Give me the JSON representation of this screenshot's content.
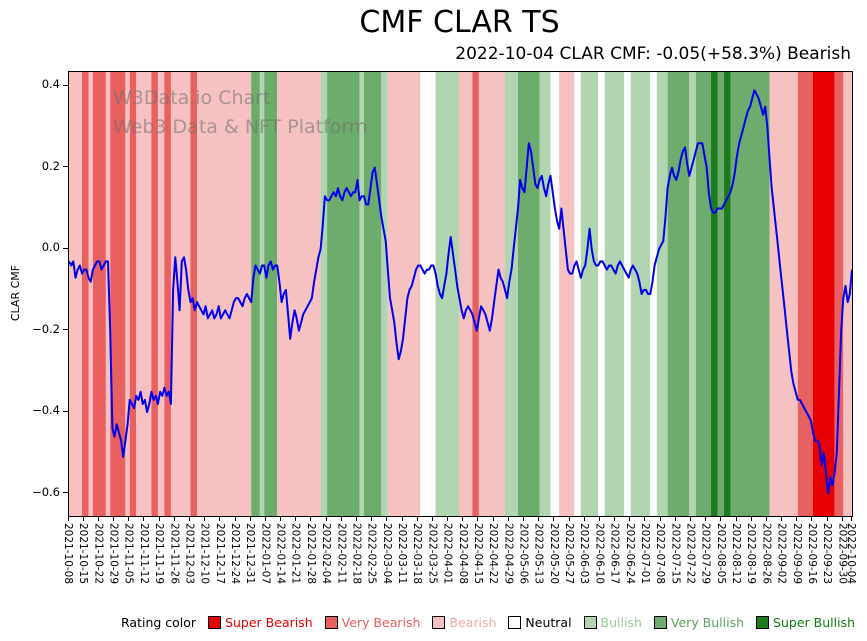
{
  "header": {
    "title": "CMF CLAR TS",
    "subtitle": "2022-10-04 CLAR CMF: -0.05(+58.3%) Bearish"
  },
  "watermark": {
    "line1": "W3Data.io Chart",
    "line2": "Web3 Data & NFT Platform"
  },
  "legend": {
    "label": "Rating color",
    "items": [
      {
        "label": "Super Bearish",
        "rating": "super_bearish",
        "text_color": "#e60000"
      },
      {
        "label": "Very Bearish",
        "rating": "very_bearish",
        "text_color": "#e25d5d"
      },
      {
        "label": "Bearish",
        "rating": "bearish",
        "text_color": "#efa9a9"
      },
      {
        "label": "Neutral",
        "rating": "neutral",
        "text_color": "#000000"
      },
      {
        "label": "Bullish",
        "rating": "bullish",
        "text_color": "#9cc99c"
      },
      {
        "label": "Very Bullish",
        "rating": "very_bullish",
        "text_color": "#5f9f5f"
      },
      {
        "label": "Super Bullish",
        "rating": "super_bullish",
        "text_color": "#147a14"
      }
    ]
  },
  "chart_data": {
    "type": "line",
    "title": "CMF CLAR TS",
    "xlabel": "",
    "ylabel": "CLAR CMF",
    "ylim": [
      -0.655,
      0.435
    ],
    "xlim_days": [
      0,
      361
    ],
    "grid": false,
    "line_color": "#0000ee",
    "y_ticks": [
      0.4,
      0.2,
      0.0,
      -0.2,
      -0.4,
      -0.6
    ],
    "y_tick_labels": [
      "0.4",
      "0.2",
      "0.0",
      "−0.2",
      "−0.4",
      "−0.6"
    ],
    "x_tick_days": [
      0,
      7,
      14,
      21,
      28,
      35,
      42,
      49,
      56,
      63,
      70,
      77,
      84,
      91,
      98,
      105,
      112,
      119,
      126,
      133,
      140,
      147,
      154,
      161,
      168,
      175,
      182,
      189,
      196,
      203,
      210,
      217,
      224,
      231,
      238,
      245,
      252,
      259,
      266,
      273,
      280,
      287,
      294,
      301,
      308,
      315,
      322,
      329,
      336,
      343,
      350,
      357,
      361
    ],
    "x_tick_labels": [
      "2021-10-08",
      "2021-10-15",
      "2021-10-22",
      "2021-10-29",
      "2021-11-05",
      "2021-11-12",
      "2021-11-19",
      "2021-11-26",
      "2021-12-03",
      "2021-12-10",
      "2021-12-17",
      "2021-12-24",
      "2021-12-31",
      "2022-01-07",
      "2022-01-14",
      "2022-01-21",
      "2022-01-28",
      "2022-02-04",
      "2022-02-11",
      "2022-02-18",
      "2022-02-25",
      "2022-03-04",
      "2022-03-11",
      "2022-03-18",
      "2022-03-25",
      "2022-04-01",
      "2022-04-08",
      "2022-04-15",
      "2022-04-22",
      "2022-04-29",
      "2022-05-06",
      "2022-05-13",
      "2022-05-20",
      "2022-05-27",
      "2022-06-03",
      "2022-06-10",
      "2022-06-17",
      "2022-06-24",
      "2022-07-01",
      "2022-07-08",
      "2022-07-15",
      "2022-07-22",
      "2022-07-29",
      "2022-08-05",
      "2022-08-12",
      "2022-08-19",
      "2022-08-26",
      "2022-09-02",
      "2022-09-09",
      "2022-09-16",
      "2022-09-23",
      "2022-09-30",
      "2022-10-04"
    ],
    "rating_colors": {
      "super_bearish": "#e60000",
      "very_bearish": "#e86060",
      "bearish": "#f6c1c1",
      "neutral": "#ffffff",
      "bullish": "#b0d5b0",
      "very_bullish": "#6dac6d",
      "super_bullish": "#1e7a1e"
    },
    "rating_bands": [
      {
        "start": 0,
        "end": 6,
        "rating": "bearish"
      },
      {
        "start": 6,
        "end": 9,
        "rating": "very_bearish"
      },
      {
        "start": 9,
        "end": 11,
        "rating": "bearish"
      },
      {
        "start": 11,
        "end": 17,
        "rating": "very_bearish"
      },
      {
        "start": 17,
        "end": 19,
        "rating": "bearish"
      },
      {
        "start": 19,
        "end": 26,
        "rating": "very_bearish"
      },
      {
        "start": 26,
        "end": 28,
        "rating": "bearish"
      },
      {
        "start": 28,
        "end": 31,
        "rating": "very_bearish"
      },
      {
        "start": 31,
        "end": 38,
        "rating": "bearish"
      },
      {
        "start": 38,
        "end": 41,
        "rating": "very_bearish"
      },
      {
        "start": 41,
        "end": 44,
        "rating": "bearish"
      },
      {
        "start": 44,
        "end": 47,
        "rating": "very_bearish"
      },
      {
        "start": 47,
        "end": 56,
        "rating": "bearish"
      },
      {
        "start": 56,
        "end": 59,
        "rating": "very_bearish"
      },
      {
        "start": 59,
        "end": 84,
        "rating": "bearish"
      },
      {
        "start": 84,
        "end": 88,
        "rating": "very_bullish"
      },
      {
        "start": 88,
        "end": 90,
        "rating": "bullish"
      },
      {
        "start": 90,
        "end": 96,
        "rating": "very_bullish"
      },
      {
        "start": 96,
        "end": 116,
        "rating": "bearish"
      },
      {
        "start": 116,
        "end": 119,
        "rating": "bullish"
      },
      {
        "start": 119,
        "end": 134,
        "rating": "very_bullish"
      },
      {
        "start": 134,
        "end": 136,
        "rating": "bullish"
      },
      {
        "start": 136,
        "end": 144,
        "rating": "very_bullish"
      },
      {
        "start": 144,
        "end": 147,
        "rating": "bullish"
      },
      {
        "start": 147,
        "end": 162,
        "rating": "bearish"
      },
      {
        "start": 162,
        "end": 169,
        "rating": "neutral"
      },
      {
        "start": 169,
        "end": 180,
        "rating": "bullish"
      },
      {
        "start": 180,
        "end": 186,
        "rating": "bearish"
      },
      {
        "start": 186,
        "end": 189,
        "rating": "very_bearish"
      },
      {
        "start": 189,
        "end": 201,
        "rating": "bearish"
      },
      {
        "start": 201,
        "end": 207,
        "rating": "bullish"
      },
      {
        "start": 207,
        "end": 217,
        "rating": "very_bullish"
      },
      {
        "start": 217,
        "end": 222,
        "rating": "bullish"
      },
      {
        "start": 222,
        "end": 226,
        "rating": "neutral"
      },
      {
        "start": 226,
        "end": 233,
        "rating": "bearish"
      },
      {
        "start": 233,
        "end": 236,
        "rating": "neutral"
      },
      {
        "start": 236,
        "end": 244,
        "rating": "bullish"
      },
      {
        "start": 244,
        "end": 247,
        "rating": "neutral"
      },
      {
        "start": 247,
        "end": 256,
        "rating": "bullish"
      },
      {
        "start": 256,
        "end": 259,
        "rating": "neutral"
      },
      {
        "start": 259,
        "end": 268,
        "rating": "bullish"
      },
      {
        "start": 268,
        "end": 271,
        "rating": "neutral"
      },
      {
        "start": 271,
        "end": 276,
        "rating": "bullish"
      },
      {
        "start": 276,
        "end": 286,
        "rating": "very_bullish"
      },
      {
        "start": 286,
        "end": 289,
        "rating": "bullish"
      },
      {
        "start": 289,
        "end": 296,
        "rating": "very_bullish"
      },
      {
        "start": 296,
        "end": 299,
        "rating": "super_bullish"
      },
      {
        "start": 299,
        "end": 302,
        "rating": "very_bullish"
      },
      {
        "start": 302,
        "end": 305,
        "rating": "super_bullish"
      },
      {
        "start": 305,
        "end": 323,
        "rating": "very_bullish"
      },
      {
        "start": 323,
        "end": 336,
        "rating": "bearish"
      },
      {
        "start": 336,
        "end": 343,
        "rating": "very_bearish"
      },
      {
        "start": 343,
        "end": 353,
        "rating": "super_bearish"
      },
      {
        "start": 353,
        "end": 357,
        "rating": "very_bearish"
      },
      {
        "start": 357,
        "end": 361,
        "rating": "bearish"
      }
    ],
    "series": [
      {
        "name": "CLAR CMF",
        "x_start_day": 0,
        "step_days": 1,
        "values": [
          -0.03,
          -0.04,
          -0.03,
          -0.07,
          -0.05,
          -0.04,
          -0.06,
          -0.05,
          -0.05,
          -0.07,
          -0.08,
          -0.05,
          -0.04,
          -0.03,
          -0.03,
          -0.05,
          -0.04,
          -0.03,
          -0.03,
          -0.2,
          -0.44,
          -0.46,
          -0.43,
          -0.45,
          -0.47,
          -0.51,
          -0.47,
          -0.43,
          -0.37,
          -0.38,
          -0.39,
          -0.36,
          -0.37,
          -0.35,
          -0.38,
          -0.37,
          -0.4,
          -0.38,
          -0.35,
          -0.37,
          -0.36,
          -0.38,
          -0.35,
          -0.36,
          -0.34,
          -0.36,
          -0.35,
          -0.38,
          -0.1,
          -0.02,
          -0.08,
          -0.15,
          -0.03,
          -0.02,
          -0.05,
          -0.1,
          -0.13,
          -0.12,
          -0.15,
          -0.13,
          -0.14,
          -0.15,
          -0.16,
          -0.14,
          -0.17,
          -0.16,
          -0.15,
          -0.17,
          -0.16,
          -0.14,
          -0.17,
          -0.16,
          -0.15,
          -0.16,
          -0.17,
          -0.15,
          -0.13,
          -0.12,
          -0.12,
          -0.13,
          -0.14,
          -0.12,
          -0.11,
          -0.12,
          -0.13,
          -0.07,
          -0.04,
          -0.05,
          -0.06,
          -0.04,
          -0.04,
          -0.07,
          -0.04,
          -0.03,
          -0.05,
          -0.04,
          -0.04,
          -0.08,
          -0.13,
          -0.11,
          -0.1,
          -0.16,
          -0.22,
          -0.18,
          -0.15,
          -0.17,
          -0.2,
          -0.18,
          -0.16,
          -0.15,
          -0.14,
          -0.13,
          -0.12,
          -0.08,
          -0.05,
          -0.02,
          0.0,
          0.06,
          0.13,
          0.12,
          0.12,
          0.13,
          0.14,
          0.13,
          0.15,
          0.13,
          0.12,
          0.14,
          0.15,
          0.14,
          0.13,
          0.14,
          0.14,
          0.17,
          0.12,
          0.13,
          0.13,
          0.11,
          0.11,
          0.15,
          0.19,
          0.2,
          0.16,
          0.12,
          0.08,
          0.05,
          0.02,
          -0.05,
          -0.12,
          -0.15,
          -0.18,
          -0.23,
          -0.27,
          -0.25,
          -0.22,
          -0.17,
          -0.12,
          -0.1,
          -0.09,
          -0.07,
          -0.05,
          -0.04,
          -0.04,
          -0.05,
          -0.06,
          -0.05,
          -0.05,
          -0.04,
          -0.04,
          -0.06,
          -0.09,
          -0.11,
          -0.12,
          -0.09,
          -0.06,
          -0.01,
          0.03,
          -0.01,
          -0.05,
          -0.09,
          -0.12,
          -0.15,
          -0.17,
          -0.15,
          -0.14,
          -0.15,
          -0.16,
          -0.18,
          -0.2,
          -0.17,
          -0.14,
          -0.15,
          -0.16,
          -0.18,
          -0.2,
          -0.17,
          -0.13,
          -0.09,
          -0.05,
          -0.07,
          -0.08,
          -0.1,
          -0.12,
          -0.08,
          -0.05,
          0.0,
          0.05,
          0.1,
          0.17,
          0.15,
          0.14,
          0.2,
          0.26,
          0.24,
          0.2,
          0.16,
          0.15,
          0.17,
          0.18,
          0.15,
          0.13,
          0.16,
          0.18,
          0.14,
          0.1,
          0.07,
          0.05,
          0.1,
          0.05,
          0.0,
          -0.05,
          -0.06,
          -0.06,
          -0.04,
          -0.03,
          -0.05,
          -0.07,
          -0.05,
          -0.04,
          0.0,
          0.05,
          0.0,
          -0.03,
          -0.04,
          -0.04,
          -0.03,
          -0.03,
          -0.04,
          -0.05,
          -0.04,
          -0.04,
          -0.05,
          -0.06,
          -0.04,
          -0.03,
          -0.04,
          -0.05,
          -0.06,
          -0.07,
          -0.05,
          -0.04,
          -0.05,
          -0.06,
          -0.08,
          -0.11,
          -0.1,
          -0.1,
          -0.11,
          -0.11,
          -0.08,
          -0.04,
          -0.02,
          0.0,
          0.01,
          0.02,
          0.08,
          0.15,
          0.18,
          0.2,
          0.18,
          0.17,
          0.19,
          0.22,
          0.24,
          0.25,
          0.21,
          0.18,
          0.2,
          0.22,
          0.24,
          0.26,
          0.26,
          0.26,
          0.23,
          0.2,
          0.14,
          0.1,
          0.09,
          0.09,
          0.1,
          0.1,
          0.1,
          0.11,
          0.12,
          0.13,
          0.14,
          0.16,
          0.19,
          0.23,
          0.26,
          0.28,
          0.3,
          0.32,
          0.34,
          0.35,
          0.37,
          0.39,
          0.38,
          0.37,
          0.35,
          0.33,
          0.35,
          0.3,
          0.22,
          0.15,
          0.1,
          0.05,
          0.0,
          -0.05,
          -0.1,
          -0.15,
          -0.2,
          -0.25,
          -0.3,
          -0.33,
          -0.35,
          -0.37,
          -0.37,
          -0.38,
          -0.39,
          -0.4,
          -0.41,
          -0.42,
          -0.45,
          -0.47,
          -0.47,
          -0.48,
          -0.53,
          -0.5,
          -0.55,
          -0.6,
          -0.56,
          -0.58,
          -0.55,
          -0.5,
          -0.35,
          -0.2,
          -0.12,
          -0.09,
          -0.13,
          -0.11,
          -0.05
        ]
      }
    ]
  }
}
